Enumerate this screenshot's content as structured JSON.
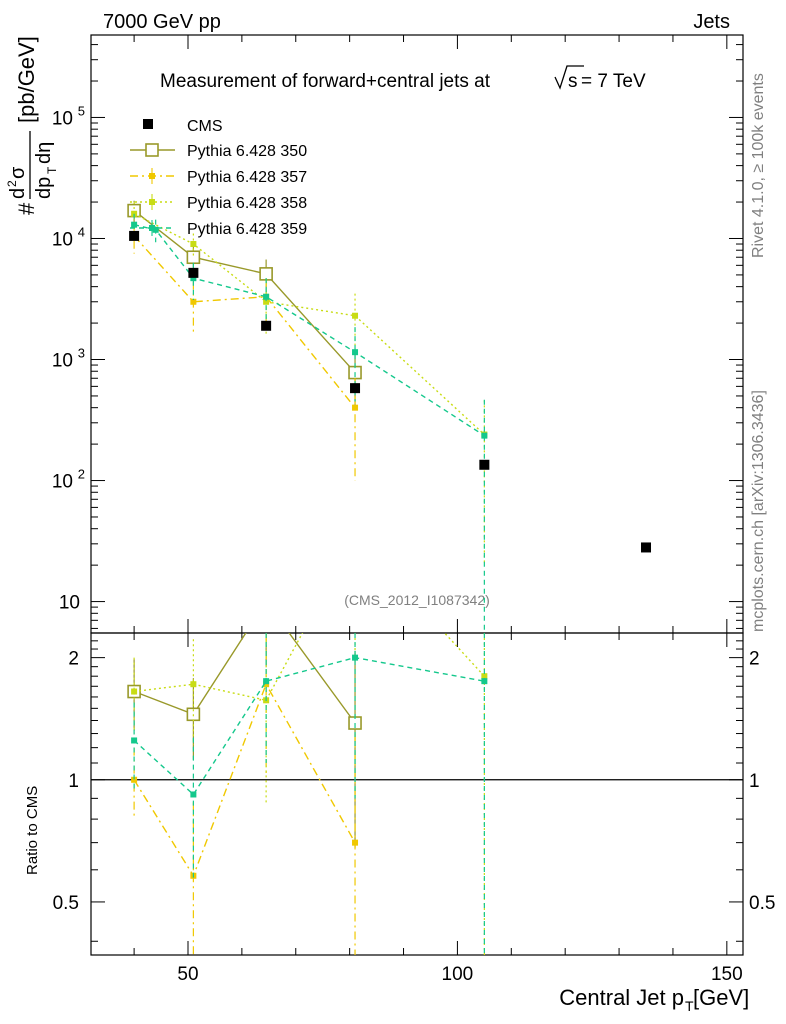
{
  "header": {
    "left": "7000 GeV pp",
    "right": "Jets",
    "title": "Measurement of forward+central jets at",
    "title_sqrt": "s",
    "title_tail": "= 7 TeV",
    "analysis_tag": "(CMS_2012_I1087342)",
    "side_label_top": "Rivet 4.1.0, ≥ 100k events",
    "side_label_bottom": "mcplots.cern.ch [arXiv:1306.3436]"
  },
  "chart_data": {
    "type": "scatter",
    "xlabel": "Central Jet p",
    "xlabel_sub": "T",
    "xlabel_unit": " [GeV]",
    "ylabel_main": "[pb/GeV]",
    "ylabel_hash": "#",
    "ylabel_num": "d",
    "ylabel_num_sup": "2",
    "ylabel_num_tail": "σ",
    "ylabel_den": "dp",
    "ylabel_den_sub": "T",
    "ylabel_den_tail": " dη",
    "ratio_ylabel": "Ratio to CMS",
    "xlim": [
      32,
      153
    ],
    "ylim": [
      5.5,
      480000
    ],
    "yscale": "log",
    "ratio_ylim": [
      0.37,
      2.3
    ],
    "ratio_yscale": "log",
    "x_ticks": [
      "50",
      "100",
      "150"
    ],
    "y_ticks": [
      "10",
      "10",
      "10",
      "10",
      "10"
    ],
    "y_tick_exps": [
      "",
      "2",
      "3",
      "4",
      "5"
    ],
    "ratio_y_ticks": [
      "0.5",
      "1",
      "2"
    ],
    "legend_position": "top-left",
    "data": {
      "name": "CMS",
      "color": "#000000",
      "x": [
        40,
        51,
        64.5,
        81,
        105,
        135
      ],
      "y": [
        10500,
        5200,
        1900,
        580,
        135,
        28
      ]
    },
    "series": [
      {
        "name": "Pythia 6.428 350",
        "color": "#99992a",
        "style": "solid",
        "marker": "open-square",
        "x": [
          40,
          51,
          64.5,
          81
        ],
        "y": [
          17000,
          7000,
          5100,
          780
        ],
        "err": [
          3500,
          1600,
          1600,
          400
        ],
        "ratio": [
          1.65,
          1.45,
          2.75,
          1.38
        ],
        "ratio_err": [
          0.33,
          0.33,
          0.85,
          0.7
        ]
      },
      {
        "name": "Pythia 6.428 357",
        "color": "#f0c800",
        "style": "dashdot",
        "marker": "dot",
        "x": [
          40,
          51,
          64.5,
          81
        ],
        "y": [
          10500,
          3000,
          3300,
          400
        ],
        "err": [
          3000,
          1400,
          1400,
          300
        ],
        "ratio": [
          1.0,
          0.58,
          1.72,
          0.7
        ],
        "ratio_err": [
          0.2,
          0.3,
          0.7,
          0.6
        ]
      },
      {
        "name": "Pythia 6.428 358",
        "color": "#c8dc14",
        "style": "dotted",
        "marker": "dot",
        "x": [
          40,
          51,
          64.5,
          81,
          105
        ],
        "y": [
          16000,
          9000,
          3000,
          2300,
          240
        ],
        "err": [
          4000,
          2000,
          1400,
          1200,
          220
        ],
        "ratio": [
          1.65,
          1.72,
          1.57,
          4.0,
          1.8
        ],
        "ratio_err": [
          0.35,
          0.5,
          0.7,
          2.0,
          1.5
        ]
      },
      {
        "name": "Pythia 6.428 359",
        "color": "#14c88c",
        "style": "dashed",
        "marker": "dot",
        "x": [
          40,
          44,
          51,
          64.5,
          81,
          105
        ],
        "y": [
          13000,
          11800,
          4700,
          3300,
          1150,
          235
        ],
        "err": [
          3000,
          2500,
          1600,
          1400,
          700,
          230
        ],
        "ratio": [
          1.25,
          null,
          0.92,
          1.75,
          2.0,
          1.75
        ],
        "ratio_err": [
          0.3,
          null,
          0.35,
          0.65,
          1.1,
          1.7
        ]
      }
    ]
  }
}
